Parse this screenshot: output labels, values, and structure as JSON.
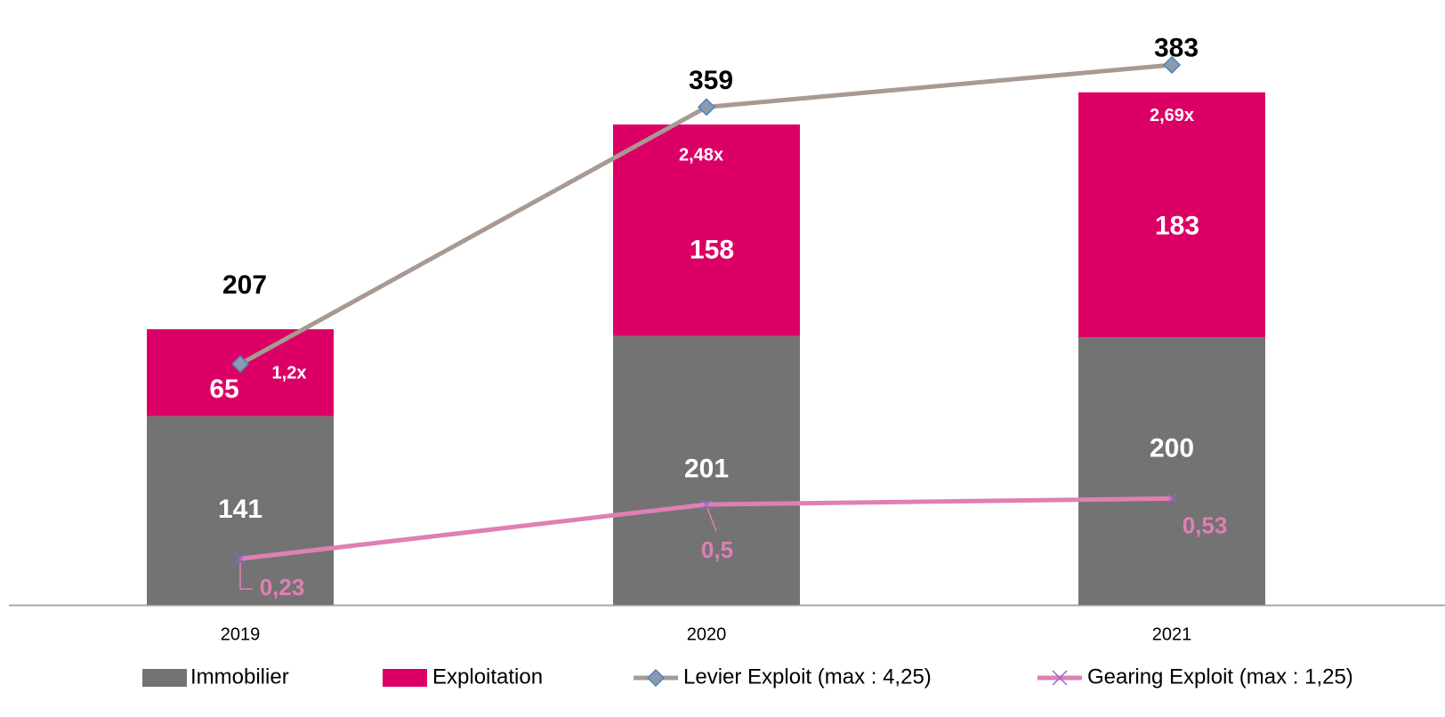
{
  "chart_data": {
    "type": "bar",
    "categories": [
      "2019",
      "2020",
      "2021"
    ],
    "series": [
      {
        "name": "Immobilier",
        "color": "#737373",
        "values": [
          141,
          201,
          200
        ]
      },
      {
        "name": "Exploitation",
        "color": "#dc0066",
        "values": [
          65,
          158,
          183
        ]
      },
      {
        "name": "Levier Exploit (max : 4,25)",
        "type": "line",
        "axis": "y2",
        "color": "#a89a93",
        "marker_color": "#8a9bb0",
        "values": [
          1.2,
          2.48,
          2.69
        ],
        "value_labels": [
          "1,2x",
          "2,48x",
          "2,69x"
        ]
      },
      {
        "name": "Gearing Exploit (max : 1,25)",
        "type": "line",
        "axis": "y2",
        "color": "#e07fb5",
        "marker_color": "#9966cc",
        "values": [
          0.23,
          0.5,
          0.53
        ],
        "value_labels": [
          "0,23",
          "0,5",
          "0,53"
        ]
      }
    ],
    "totals": [
      207,
      359,
      383
    ],
    "ylim": [
      0,
      450
    ],
    "y2lim": [
      0,
      3
    ],
    "stacked": true,
    "legend": "bottom"
  }
}
